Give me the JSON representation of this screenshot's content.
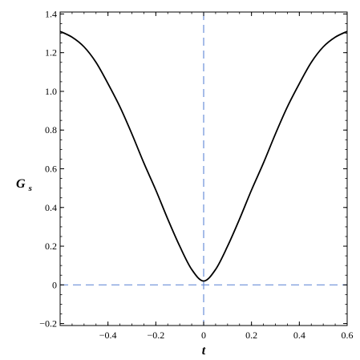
{
  "chart_data": {
    "type": "line",
    "xlabel": "t",
    "ylabel": {
      "main": "G",
      "sub": "s"
    },
    "xlim": [
      -0.6,
      0.6
    ],
    "ylim": [
      -0.21,
      1.41
    ],
    "x_ticks": [
      -0.4,
      -0.2,
      0,
      0.2,
      0.4,
      0.6
    ],
    "x_tick_labels": [
      "−0.4",
      "−0.2",
      "0",
      "0.2",
      "0.4",
      "0.6"
    ],
    "y_ticks": [
      -0.2,
      0,
      0.2,
      0.4,
      0.6,
      0.8,
      1.0,
      1.2,
      1.4
    ],
    "y_tick_labels": [
      "−0.2",
      "0",
      "0.2",
      "0.4",
      "0.6",
      "0.8",
      "1.0",
      "1.2",
      "1.4"
    ],
    "grid": false,
    "series": [
      {
        "color": "#000000",
        "x": [
          -0.6,
          -0.55,
          -0.5,
          -0.45,
          -0.4,
          -0.35,
          -0.3,
          -0.25,
          -0.2,
          -0.15,
          -0.1,
          -0.05,
          0,
          0.05,
          0.1,
          0.15,
          0.2,
          0.25,
          0.3,
          0.35,
          0.4,
          0.45,
          0.5,
          0.55,
          0.6
        ],
        "y": [
          1.31,
          1.28,
          1.23,
          1.15,
          1.04,
          0.92,
          0.78,
          0.63,
          0.49,
          0.34,
          0.2,
          0.08,
          0.02,
          0.08,
          0.2,
          0.34,
          0.49,
          0.63,
          0.78,
          0.92,
          1.04,
          1.15,
          1.23,
          1.28,
          1.31
        ]
      }
    ],
    "reference_lines": [
      {
        "orientation": "vertical",
        "value": 0,
        "color": "#6a8fd8",
        "style": "dashed"
      },
      {
        "orientation": "horizontal",
        "value": 0,
        "color": "#6a8fd8",
        "style": "dashed"
      }
    ]
  }
}
